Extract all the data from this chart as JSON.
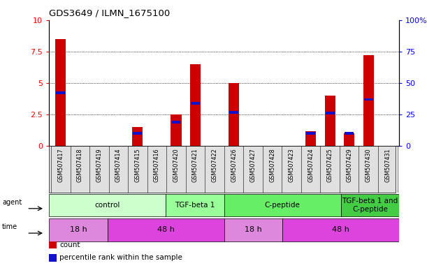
{
  "title": "GDS3649 / ILMN_1675100",
  "samples": [
    "GSM507417",
    "GSM507418",
    "GSM507419",
    "GSM507414",
    "GSM507415",
    "GSM507416",
    "GSM507420",
    "GSM507421",
    "GSM507422",
    "GSM507426",
    "GSM507427",
    "GSM507428",
    "GSM507423",
    "GSM507424",
    "GSM507425",
    "GSM507429",
    "GSM507430",
    "GSM507431"
  ],
  "count_values": [
    8.5,
    0,
    0,
    0,
    1.5,
    0,
    2.5,
    6.5,
    0,
    5.0,
    0,
    0,
    0,
    1.2,
    4.0,
    1.0,
    7.2,
    0
  ],
  "percentile_values": [
    42,
    0,
    0,
    0,
    10,
    0,
    19,
    34,
    0,
    27,
    0,
    0,
    0,
    10,
    26,
    10,
    37,
    0
  ],
  "bar_color": "#cc0000",
  "dot_color": "#1111cc",
  "ylim_left": [
    0,
    10
  ],
  "ylim_right": [
    0,
    100
  ],
  "yticks_left": [
    0,
    2.5,
    5,
    7.5,
    10
  ],
  "yticks_right": [
    0,
    25,
    50,
    75,
    100
  ],
  "agent_groups": [
    {
      "label": "control",
      "start": 0,
      "end": 5,
      "color": "#ccffcc"
    },
    {
      "label": "TGF-beta 1",
      "start": 6,
      "end": 8,
      "color": "#99ff99"
    },
    {
      "label": "C-peptide",
      "start": 9,
      "end": 14,
      "color": "#66ee66"
    },
    {
      "label": "TGF-beta 1 and\nC-peptide",
      "start": 15,
      "end": 17,
      "color": "#44cc44"
    }
  ],
  "time_groups": [
    {
      "label": "18 h",
      "start": 0,
      "end": 2,
      "color": "#dd88dd"
    },
    {
      "label": "48 h",
      "start": 3,
      "end": 8,
      "color": "#dd44dd"
    },
    {
      "label": "18 h",
      "start": 9,
      "end": 11,
      "color": "#dd88dd"
    },
    {
      "label": "48 h",
      "start": 12,
      "end": 17,
      "color": "#dd44dd"
    }
  ],
  "legend_count_label": "count",
  "legend_percentile_label": "percentile rank within the sample",
  "bg_color": "#ffffff",
  "bar_width": 0.55,
  "n_samples": 18
}
